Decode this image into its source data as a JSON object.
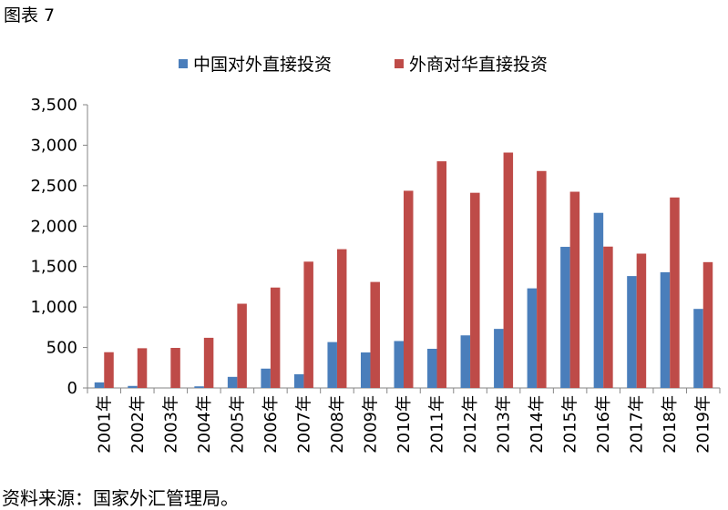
{
  "figure_label": "图表 7",
  "source_note": "资料来源：国家外汇管理局。",
  "colors": {
    "series_0": "#4a7ebb",
    "series_1": "#be4b48",
    "axis": "#868686",
    "text": "#000000"
  },
  "chart_data": {
    "type": "bar",
    "categories": [
      "2001年",
      "2002年",
      "2003年",
      "2004年",
      "2005年",
      "2006年",
      "2007年",
      "2008年",
      "2009年",
      "2010年",
      "2011年",
      "2012年",
      "2013年",
      "2014年",
      "2015年",
      "2016年",
      "2017年",
      "2018年",
      "2019年"
    ],
    "series": [
      {
        "name": "中国对外直接投资",
        "values": [
          69,
          25,
          0,
          20,
          137,
          239,
          170,
          567,
          439,
          580,
          484,
          650,
          730,
          1231,
          1744,
          2164,
          1383,
          1430,
          977
        ]
      },
      {
        "name": "外商对华直接投资",
        "values": [
          442,
          491,
          495,
          620,
          1041,
          1241,
          1561,
          1715,
          1310,
          2437,
          2801,
          2412,
          2909,
          2681,
          2425,
          1747,
          1660,
          2354,
          1555
        ]
      }
    ],
    "ylim": [
      0,
      3500
    ],
    "yticks": [
      "0",
      "500",
      "1,000",
      "1,500",
      "2,000",
      "2,500",
      "3,000",
      "3,500"
    ],
    "ytick_values": [
      0,
      500,
      1000,
      1500,
      2000,
      2500,
      3000,
      3500
    ],
    "grid": false,
    "legend_position": "top"
  }
}
